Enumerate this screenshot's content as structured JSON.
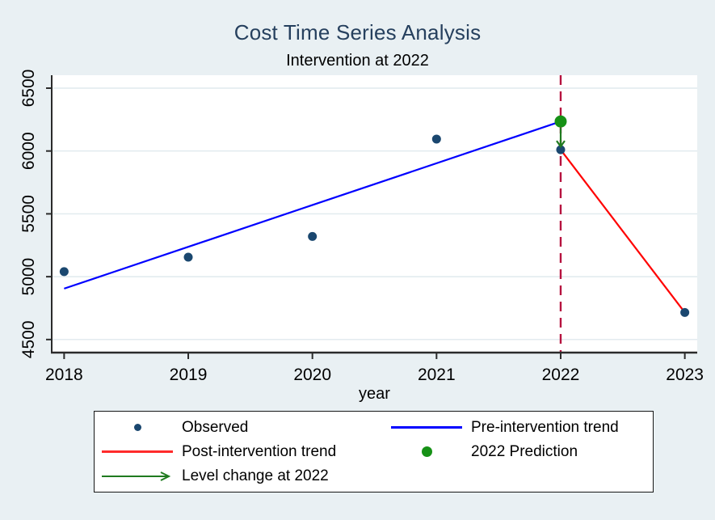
{
  "chart_data": {
    "type": "line",
    "title": "Cost Time Series Analysis",
    "subtitle": "Intervention at 2022",
    "xlabel": "year",
    "ylabel": "",
    "x_ticks": [
      2018,
      2019,
      2020,
      2021,
      2022,
      2023
    ],
    "y_ticks": [
      4500,
      5000,
      5500,
      6000,
      6500
    ],
    "xlim": [
      2017.9,
      2023.1
    ],
    "ylim": [
      4396,
      6603
    ],
    "grid": "horizontal",
    "vline": {
      "x": 2022,
      "color": "#b6123f",
      "style": "dashed"
    },
    "series": [
      {
        "name": "Observed",
        "type": "scatter",
        "color": "#1a476f",
        "radius": 5.5,
        "x": [
          2018,
          2019,
          2020,
          2021,
          2022,
          2023
        ],
        "y": [
          5040,
          5155,
          5320,
          6095,
          6010,
          4715
        ]
      },
      {
        "name": "Pre-intervention trend",
        "type": "line",
        "color": "#0000ff",
        "x": [
          2018,
          2022
        ],
        "y": [
          4905,
          6235
        ]
      },
      {
        "name": "Post-intervention trend",
        "type": "line",
        "color": "#ff0000",
        "x": [
          2022,
          2023
        ],
        "y": [
          6010,
          4715
        ]
      },
      {
        "name": "2022 Prediction",
        "type": "scatter",
        "color": "#169116",
        "radius": 7.5,
        "x": [
          2022
        ],
        "y": [
          6235
        ]
      },
      {
        "name": "Level change at 2022",
        "type": "arrow",
        "color": "#1f7a1f",
        "x": 2022,
        "y_from": 6235,
        "y_to": 6010
      }
    ]
  },
  "legend": {
    "items": [
      {
        "label": "Observed",
        "symbol": "dot",
        "color": "#1a476f"
      },
      {
        "label": "Pre-intervention trend",
        "symbol": "line",
        "color": "#0000ff"
      },
      {
        "label": "Post-intervention trend",
        "symbol": "line",
        "color": "#ff2b2b"
      },
      {
        "label": "2022 Prediction",
        "symbol": "dot-big",
        "color": "#169116"
      },
      {
        "label": "Level change at 2022",
        "symbol": "arrow",
        "color": "#1f7a1f"
      }
    ]
  },
  "colors": {
    "background": "#e9f0f3",
    "plot_background": "#ffffff",
    "gridline": "#e0eaee",
    "axis": "#2b2b2b",
    "title": "#26405e"
  }
}
